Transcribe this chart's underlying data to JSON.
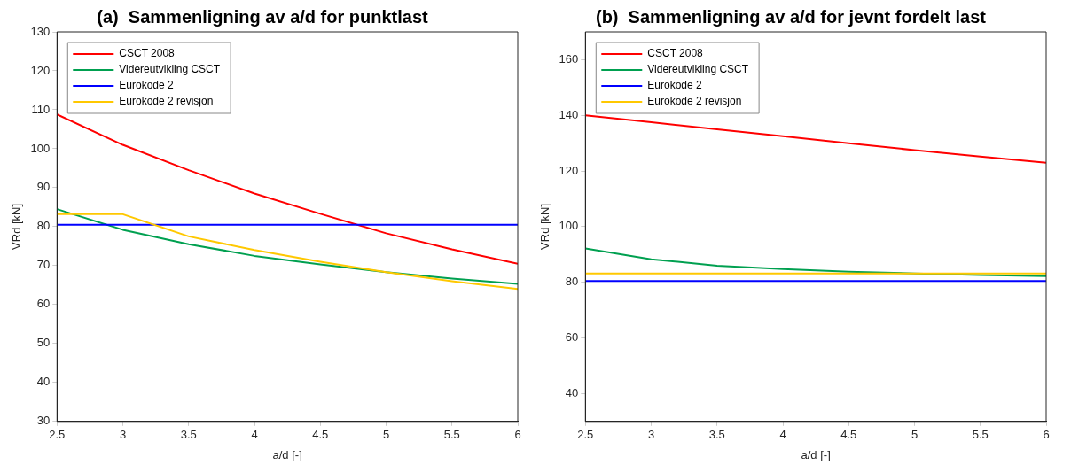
{
  "chart_data": [
    {
      "type": "line",
      "title": "(a)  Sammenligning av a/d for punktlast",
      "xlabel": "a/d [-]",
      "ylabel": "VRd [kN]",
      "x": [
        2.5,
        3,
        3.5,
        4,
        4.5,
        5,
        5.5,
        6
      ],
      "xlim": [
        2.5,
        6
      ],
      "xticks": [
        2.5,
        3,
        3.5,
        4,
        4.5,
        5,
        5.5,
        6
      ],
      "ylim": [
        30,
        130
      ],
      "yticks": [
        30,
        40,
        50,
        60,
        70,
        80,
        90,
        100,
        110,
        120,
        130
      ],
      "legend": "top left",
      "grid": false,
      "series": [
        {
          "name": "CSCT 2008",
          "color": "#ff0000",
          "values": [
            108.8,
            101,
            94.5,
            88.5,
            83.3,
            78.3,
            74.2,
            70.5
          ]
        },
        {
          "name": "Videreutvikling CSCT",
          "color": "#00a050",
          "values": [
            84.5,
            79.2,
            75.5,
            72.5,
            70.3,
            68.3,
            66.7,
            65.3
          ]
        },
        {
          "name": "Eurokode 2",
          "color": "#0000ff",
          "values": [
            80.5,
            80.5,
            80.5,
            80.5,
            80.5,
            80.5,
            80.5,
            80.5
          ]
        },
        {
          "name": "Eurokode 2 revisjon",
          "color": "#ffc800",
          "values": [
            83.2,
            83.2,
            77.5,
            74,
            71,
            68.3,
            66,
            64
          ]
        }
      ]
    },
    {
      "type": "line",
      "title": "(b)  Sammenligning av a/d for jevnt fordelt last",
      "xlabel": "a/d [-]",
      "ylabel": "VRd [kN]",
      "x": [
        2.5,
        3,
        3.5,
        4,
        4.5,
        5,
        5.5,
        6
      ],
      "xlim": [
        2.5,
        6
      ],
      "xticks": [
        2.5,
        3,
        3.5,
        4,
        4.5,
        5,
        5.5,
        6
      ],
      "ylim": [
        30,
        170
      ],
      "yticks": [
        40,
        60,
        80,
        100,
        120,
        140,
        160
      ],
      "legend": "top left",
      "grid": false,
      "series": [
        {
          "name": "CSCT 2008",
          "color": "#ff0000",
          "values": [
            140,
            137.5,
            135,
            132.5,
            130,
            127.5,
            125.2,
            123
          ]
        },
        {
          "name": "Videreutvikling CSCT",
          "color": "#00a050",
          "values": [
            92.2,
            88.3,
            86,
            84.8,
            83.8,
            83.2,
            82.6,
            82.2
          ]
        },
        {
          "name": "Eurokode 2",
          "color": "#0000ff",
          "values": [
            80.5,
            80.5,
            80.5,
            80.5,
            80.5,
            80.5,
            80.5,
            80.5
          ]
        },
        {
          "name": "Eurokode 2 revisjon",
          "color": "#ffc800",
          "values": [
            83.2,
            83.2,
            83.2,
            83.2,
            83.2,
            83.2,
            83.2,
            83.2
          ]
        }
      ]
    }
  ]
}
